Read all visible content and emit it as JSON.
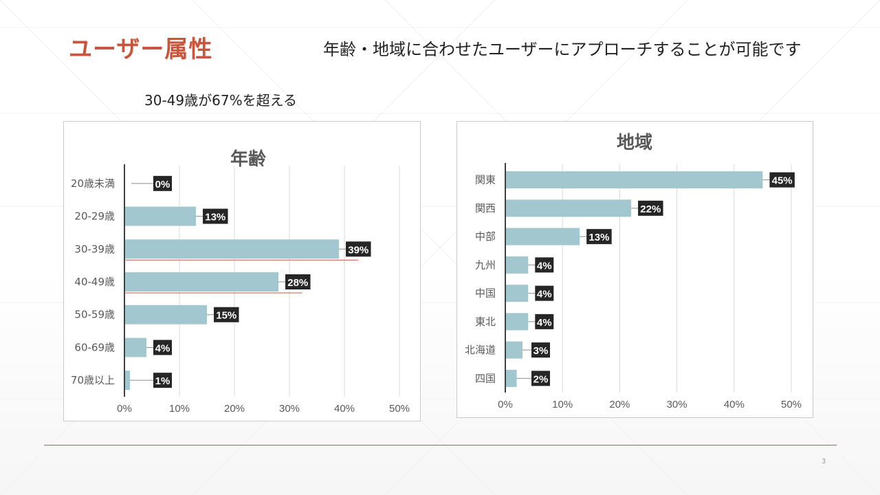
{
  "slide": {
    "title": "ユーザー属性",
    "subtitle": "年齢・地域に合わせたユーザーにアプローチすることが可能です",
    "highlight": "30-49歳が67%を超える",
    "page_number": "3"
  },
  "colors": {
    "accent": "#c8553d",
    "bar": "#a3c7cf",
    "label_bg": "#262626",
    "label_text": "#ffffff",
    "axis_text": "#595959",
    "gridline": "#d9d9d9"
  },
  "chart_data": [
    {
      "type": "bar",
      "orientation": "horizontal",
      "title": "年齢",
      "categories": [
        "20歳未満",
        "20-29歳",
        "30-39歳",
        "40-49歳",
        "50-59歳",
        "60-69歳",
        "70歳以上"
      ],
      "values": [
        0,
        13,
        39,
        28,
        15,
        4,
        1
      ],
      "data_labels": [
        "0%",
        "13%",
        "39%",
        "28%",
        "15%",
        "4%",
        "1%"
      ],
      "xlim": [
        0,
        50
      ],
      "ticks": [
        "0%",
        "10%",
        "20%",
        "30%",
        "40%",
        "50%"
      ],
      "grid": true,
      "xlabel": "",
      "ylabel": ""
    },
    {
      "type": "bar",
      "orientation": "horizontal",
      "title": "地域",
      "categories": [
        "関東",
        "関西",
        "中部",
        "九州",
        "中国",
        "東北",
        "北海道",
        "四国"
      ],
      "values": [
        45,
        22,
        13,
        4,
        4,
        4,
        3,
        2
      ],
      "data_labels": [
        "45%",
        "22%",
        "13%",
        "4%",
        "4%",
        "4%",
        "3%",
        "2%"
      ],
      "xlim": [
        0,
        50
      ],
      "ticks": [
        "0%",
        "10%",
        "20%",
        "30%",
        "40%",
        "50%"
      ],
      "grid": true,
      "xlabel": "",
      "ylabel": ""
    }
  ]
}
